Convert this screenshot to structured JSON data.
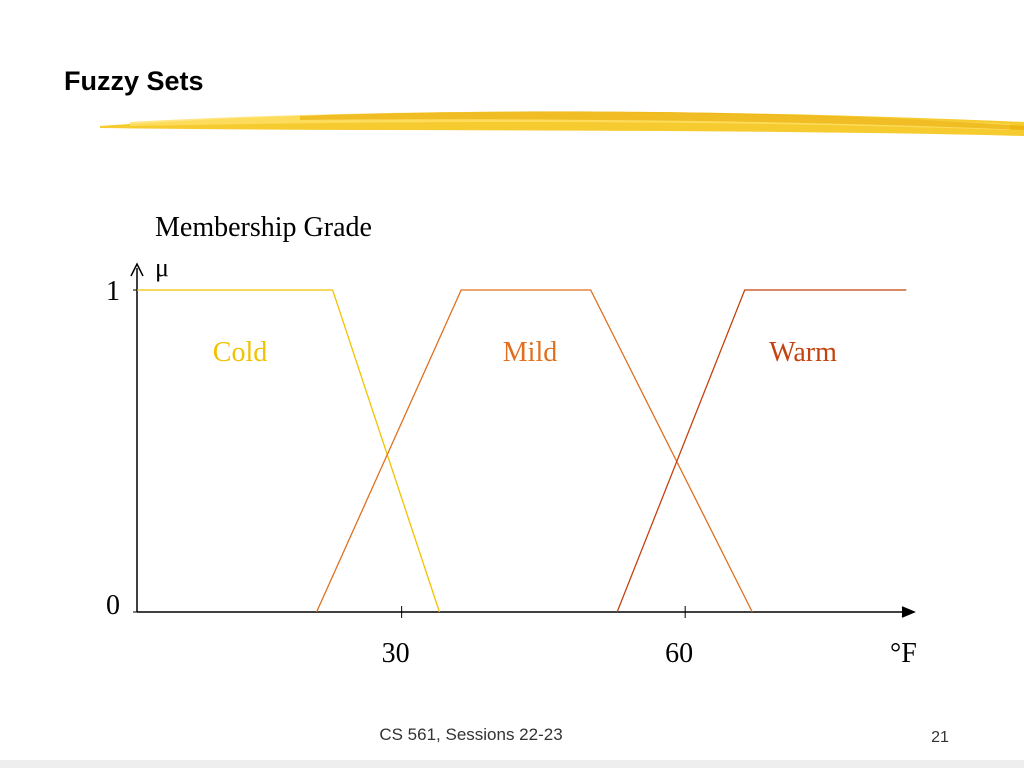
{
  "title": "Fuzzy Sets",
  "chart_data": {
    "type": "line",
    "ylabel": "Membership Grade",
    "ylabel_symbol": "μ",
    "xlabel": "°F",
    "series": [
      {
        "name": "Cold",
        "color": "#f2c200",
        "x": [
          2,
          22.7,
          34
        ],
        "values": [
          1,
          1,
          0
        ]
      },
      {
        "name": "Mild",
        "color": "#e07020",
        "x": [
          21,
          36.3,
          50,
          67.1
        ],
        "values": [
          0,
          1,
          1,
          0
        ]
      },
      {
        "name": "Warm",
        "color": "#c4420f",
        "x": [
          52.8,
          66.3,
          83.4
        ],
        "values": [
          0,
          1,
          1
        ]
      }
    ],
    "xlim": [
      2,
      84
    ],
    "xticks": [
      30,
      60
    ],
    "ylim": [
      0,
      1
    ],
    "yticks": [
      0,
      1
    ]
  },
  "footer": "CS 561,  Sessions 22-23",
  "page_number": "21"
}
